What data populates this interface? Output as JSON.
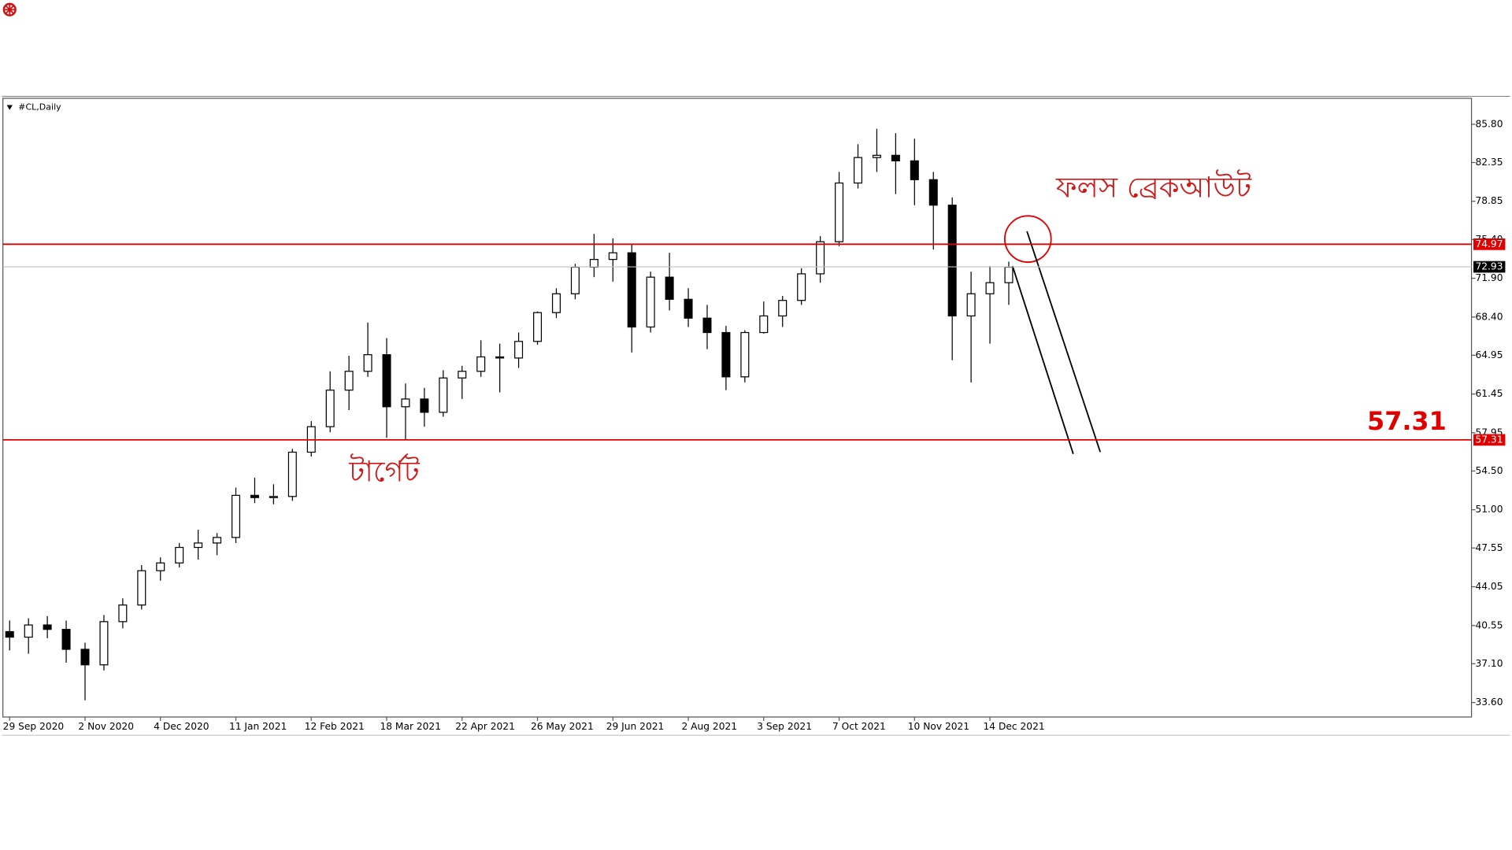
{
  "chart_data": {
    "type": "candlestick",
    "title": "#CL,Daily",
    "categories": [
      "29 Sep 2020",
      null,
      null,
      null,
      "2 Nov 2020",
      null,
      null,
      null,
      "4 Dec 2020",
      null,
      null,
      null,
      "11 Jan 2021",
      null,
      null,
      null,
      "12 Feb 2021",
      null,
      null,
      null,
      "18 Mar 2021",
      null,
      null,
      null,
      "22 Apr 2021",
      null,
      null,
      null,
      "26 May 2021",
      null,
      null,
      null,
      "29 Jun 2021",
      null,
      null,
      null,
      "2 Aug 2021",
      null,
      null,
      null,
      "3 Sep 2021",
      null,
      null,
      null,
      "7 Oct 2021",
      null,
      null,
      null,
      "10 Nov 2021",
      null,
      null,
      null,
      "14 Dec 2021",
      null
    ],
    "open": [
      40.0,
      39.5,
      40.6,
      40.2,
      38.4,
      37.0,
      40.9,
      42.4,
      45.5,
      46.2,
      47.6,
      48.0,
      48.5,
      52.3,
      52.1,
      52.2,
      56.2,
      58.5,
      61.8,
      63.5,
      65.0,
      60.3,
      61.0,
      59.8,
      62.9,
      63.5,
      64.8,
      64.7,
      66.2,
      68.8,
      70.5,
      72.9,
      73.6,
      74.2,
      67.5,
      72.0,
      70.0,
      68.3,
      67.0,
      63.0,
      67.0,
      68.5,
      69.9,
      72.3,
      75.2,
      80.5,
      82.8,
      83.0,
      82.5,
      80.8,
      78.5,
      68.5,
      70.5,
      71.5
    ],
    "high": [
      41.0,
      41.2,
      41.4,
      41.0,
      39.0,
      41.5,
      43.0,
      46.0,
      46.7,
      48.0,
      49.2,
      48.9,
      53.0,
      53.9,
      53.3,
      56.5,
      59.0,
      63.5,
      64.9,
      67.9,
      66.5,
      62.4,
      62.0,
      63.6,
      64.0,
      66.3,
      66.0,
      67.0,
      68.9,
      71.0,
      73.2,
      75.9,
      75.5,
      75.0,
      72.5,
      74.2,
      71.0,
      69.5,
      67.6,
      67.2,
      69.8,
      70.3,
      72.8,
      75.7,
      81.5,
      84.0,
      85.4,
      85.0,
      84.5,
      81.5,
      79.2,
      72.5,
      73.0,
      73.4
    ],
    "low": [
      38.3,
      38.0,
      39.4,
      37.2,
      33.8,
      36.5,
      40.3,
      42.0,
      44.6,
      45.8,
      46.5,
      46.9,
      48.0,
      51.6,
      51.5,
      51.8,
      55.8,
      58.0,
      60.0,
      63.0,
      57.5,
      57.3,
      58.5,
      59.4,
      61.0,
      63.0,
      61.6,
      63.8,
      65.9,
      68.3,
      70.0,
      72.0,
      71.6,
      65.2,
      67.0,
      69.0,
      67.5,
      65.5,
      61.8,
      62.5,
      66.9,
      67.5,
      69.5,
      71.5,
      74.8,
      80.0,
      81.5,
      79.5,
      78.5,
      74.5,
      64.5,
      62.5,
      66.0,
      69.5
    ],
    "close": [
      39.5,
      40.6,
      40.2,
      38.4,
      37.0,
      40.9,
      42.4,
      45.5,
      46.2,
      47.6,
      48.0,
      48.5,
      52.3,
      52.1,
      52.2,
      56.2,
      58.5,
      61.8,
      63.5,
      65.0,
      60.3,
      61.0,
      59.8,
      62.9,
      63.5,
      64.8,
      64.7,
      66.2,
      68.8,
      70.5,
      72.9,
      73.6,
      74.2,
      67.5,
      72.0,
      70.0,
      68.3,
      67.0,
      63.0,
      67.0,
      68.5,
      69.9,
      72.3,
      75.2,
      80.5,
      82.8,
      83.0,
      82.5,
      80.8,
      78.5,
      68.5,
      70.5,
      71.5,
      72.9
    ],
    "color": "#000000",
    "ylim": [
      32.29,
      88.06
    ],
    "yticks": [
      {
        "value": 33.6,
        "label": "33.60"
      },
      {
        "value": 37.1,
        "label": "37.10"
      },
      {
        "value": 40.55,
        "label": "40.55"
      },
      {
        "value": 44.05,
        "label": "44.05"
      },
      {
        "value": 47.55,
        "label": "47.55"
      },
      {
        "value": 51,
        "label": "51.00"
      },
      {
        "value": 54.5,
        "label": "54.50"
      },
      {
        "value": 57.95,
        "label": "57.95"
      },
      {
        "value": 61.45,
        "label": "61.45"
      },
      {
        "value": 64.95,
        "label": "64.95"
      },
      {
        "value": 68.4,
        "label": "68.40"
      },
      {
        "value": 71.9,
        "label": "71.90"
      },
      {
        "value": 75.4,
        "label": "75.40"
      },
      {
        "value": 78.85,
        "label": "78.85"
      },
      {
        "value": 82.35,
        "label": "82.35"
      },
      {
        "value": 85.8,
        "label": "85.80"
      }
    ],
    "grid": false,
    "levels": [
      {
        "value": 74.97,
        "color": "#e00000"
      },
      {
        "value": 57.31,
        "color": "#e00000"
      },
      {
        "value": 72.93,
        "color": "#c0c0c0"
      }
    ],
    "annotations": [
      "ফলস ব্রেকআউট",
      "টার্গেট"
    ]
  }
}
